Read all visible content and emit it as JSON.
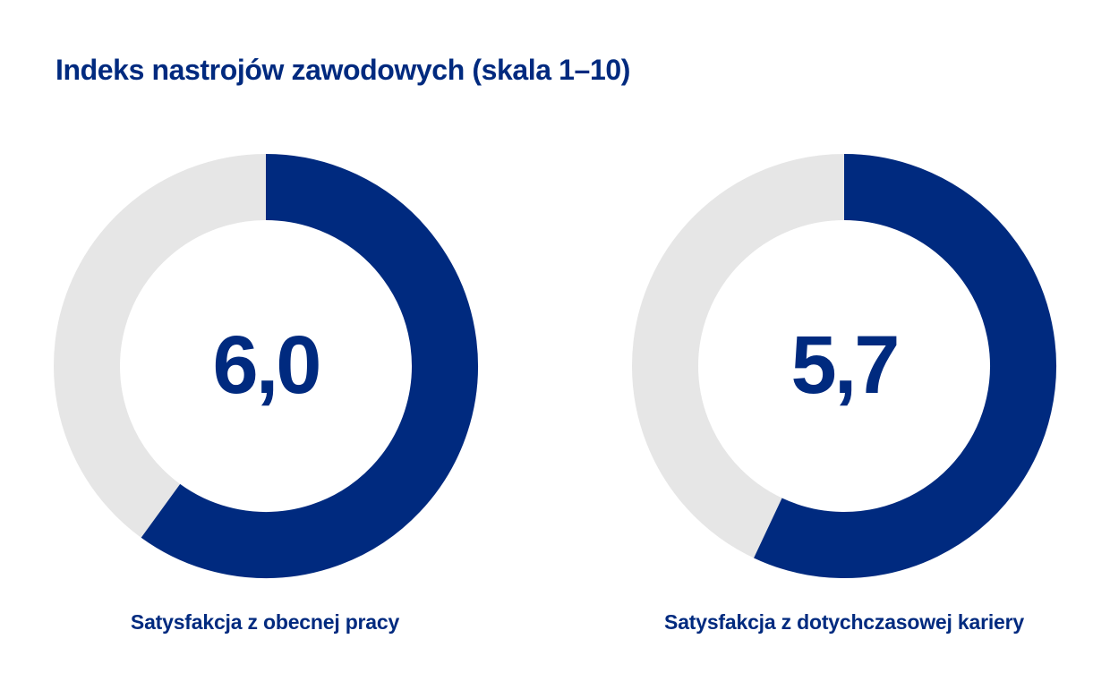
{
  "title": "Indeks nastrojów zawodowych (skala 1–10)",
  "colors": {
    "accent": "#002a7f",
    "track": "#e6e6e6",
    "background": "#ffffff"
  },
  "chart_data": [
    {
      "type": "pie",
      "value_label": "6,0",
      "value": 6.0,
      "fill_fraction": 0.6,
      "scale_max": 10,
      "caption": "Satysfakcja z obecnej pracy"
    },
    {
      "type": "pie",
      "value_label": "5,7",
      "value": 5.7,
      "fill_fraction": 0.57,
      "scale_max": 10,
      "caption": "Satysfakcja z dotychczasowej kariery"
    }
  ]
}
